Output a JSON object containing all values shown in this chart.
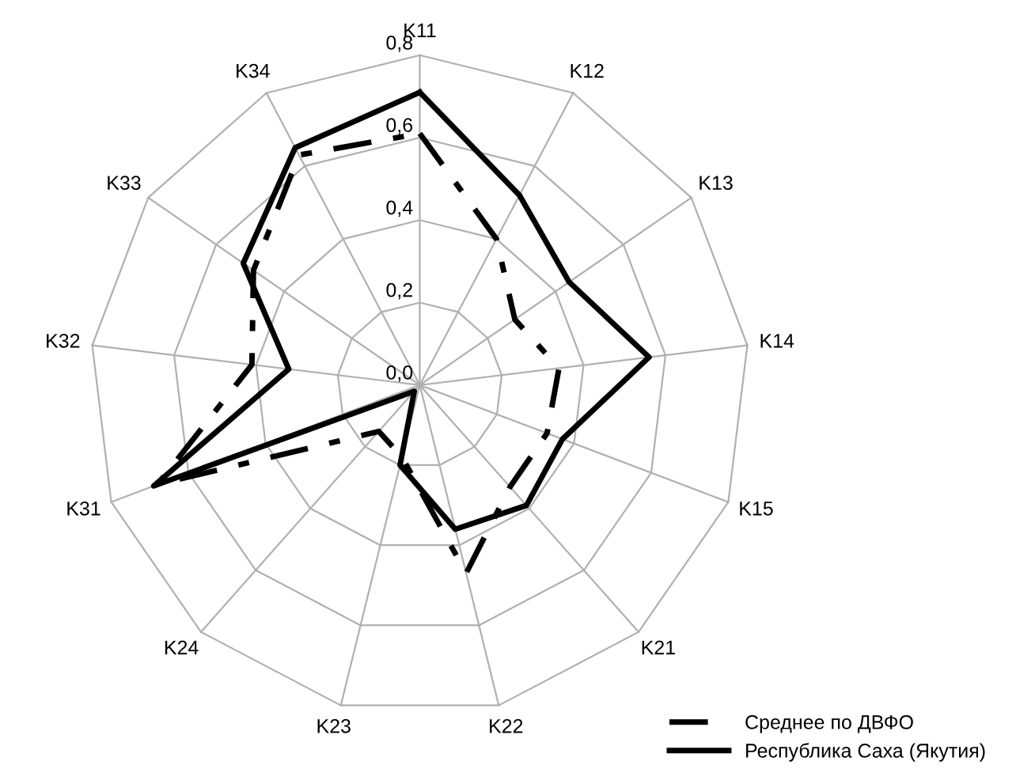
{
  "chart_data": {
    "type": "radar",
    "categories": [
      "K11",
      "K12",
      "K13",
      "K14",
      "K15",
      "K21",
      "K22",
      "K23",
      "K24",
      "K31",
      "K32",
      "K33",
      "K34"
    ],
    "ylim": [
      0,
      0.8
    ],
    "yticks": [
      {
        "value": 0,
        "label": "0,0"
      },
      {
        "value": 0.2,
        "label": "0,2"
      },
      {
        "value": 0.4,
        "label": "0,4"
      },
      {
        "value": 0.6,
        "label": "0,6"
      },
      {
        "value": 0.8,
        "label": "0,8"
      }
    ],
    "grid": true,
    "legend": "bottom right",
    "marker": "none",
    "series": [
      {
        "name": "Среднее по ДВФО",
        "color": "#000000",
        "line_style": "dashed",
        "values": [
          0.61,
          0.4,
          0.28,
          0.34,
          0.33,
          0.33,
          0.47,
          0.18,
          0.15,
          0.68,
          0.41,
          0.49,
          0.63
        ]
      },
      {
        "name": "Республика Саха (Якутия)",
        "color": "#000000",
        "line_style": "solid",
        "values": [
          0.71,
          0.52,
          0.44,
          0.56,
          0.37,
          0.39,
          0.36,
          0.2,
          0.02,
          0.69,
          0.32,
          0.52,
          0.65
        ]
      }
    ]
  }
}
